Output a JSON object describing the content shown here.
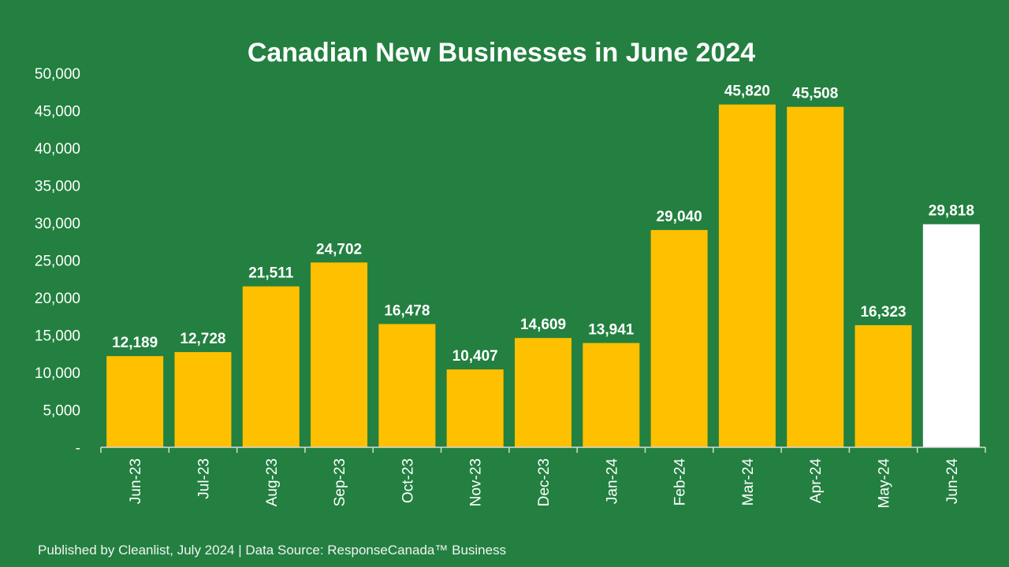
{
  "chart_data": {
    "type": "bar",
    "title": "Canadian New Businesses in June 2024",
    "xlabel": "",
    "ylabel": "",
    "ylim": [
      0,
      50000
    ],
    "yticks": [
      "-",
      "5,000",
      "10,000",
      "15,000",
      "20,000",
      "25,000",
      "30,000",
      "35,000",
      "40,000",
      "45,000",
      "50,000"
    ],
    "categories": [
      "Jun-23",
      "Jul-23",
      "Aug-23",
      "Sep-23",
      "Oct-23",
      "Nov-23",
      "Dec-23",
      "Jan-24",
      "Feb-24",
      "Mar-24",
      "Apr-24",
      "May-24",
      "Jun-24"
    ],
    "values": [
      12189,
      12728,
      21511,
      24702,
      16478,
      10407,
      14609,
      13941,
      29040,
      45820,
      45508,
      16323,
      29818
    ],
    "data_labels": [
      "12,189",
      "12,728",
      "21,511",
      "24,702",
      "16,478",
      "10,407",
      "14,609",
      "13,941",
      "29,040",
      "45,820",
      "45,508",
      "16,323",
      "29,818"
    ],
    "grid": false,
    "colors": {
      "bar": "#FFC000",
      "highlight_bar": "#FFFFFF",
      "background": "#238040"
    },
    "highlight_index": 12
  },
  "footer": "Published by Cleanlist, July 2024 | Data Source: ResponseCanada™ Business"
}
